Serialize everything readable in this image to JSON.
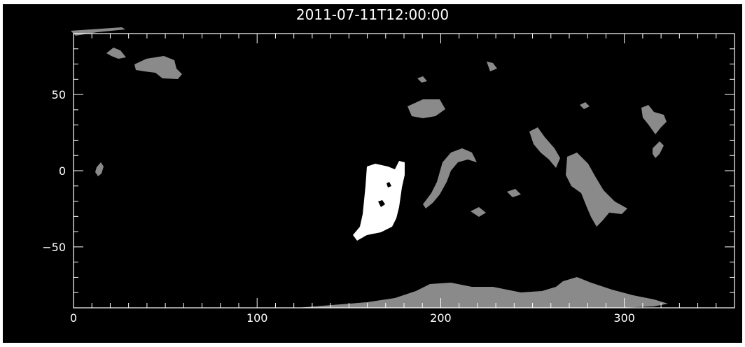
{
  "title": "2011-07-11T12:00:00",
  "colors": {
    "background": "#000000",
    "axes": "#ffffff",
    "bright_region": "#ffffff",
    "dim_region": "#8a8a8a"
  },
  "axes": {
    "x": {
      "range": [
        0,
        360
      ],
      "ticks": [
        0,
        100,
        200,
        300
      ],
      "tick_labels": [
        "0",
        "100",
        "200",
        "300"
      ],
      "minor_step": 10
    },
    "y": {
      "range": [
        -90,
        90
      ],
      "ticks": [
        50,
        0,
        -50
      ],
      "tick_labels": [
        "50",
        "0",
        "−50"
      ],
      "minor_step": 10
    }
  },
  "map_content": {
    "bright_regions": [
      {
        "name": "central-bright-patch",
        "lon_range": [
          152,
          181
        ],
        "lat_range": [
          -44,
          5
        ]
      }
    ],
    "dim_regions": [
      {
        "name": "north-polar-strip",
        "lon_range": [
          0,
          30
        ],
        "lat_range": [
          82,
          90
        ]
      },
      {
        "name": "high-lat-patch-1",
        "lon_range": [
          35,
          60
        ],
        "lat_range": [
          55,
          68
        ]
      },
      {
        "name": "southern-band",
        "lon_range": [
          130,
          330
        ],
        "lat_range": [
          -90,
          -70
        ]
      }
    ]
  }
}
